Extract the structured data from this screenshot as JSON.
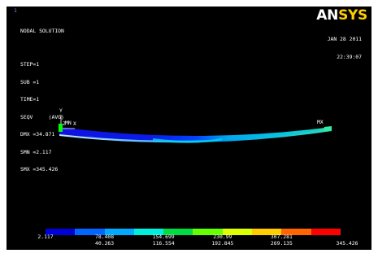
{
  "window_number": "1",
  "info": {
    "title": "NODAL SOLUTION",
    "lines": [
      "STEP=1",
      "SUB =1",
      "TIME=1",
      "SEQV     (AVG)",
      "DMX =34.871",
      "SMN =2.117",
      "SMX =345.426"
    ]
  },
  "logo": {
    "part1": "AN",
    "part2": "SYS"
  },
  "date": {
    "line1": "JAN 28 2011",
    "line2": "22:39:07"
  },
  "axes": {
    "y": "Y",
    "z": "Z",
    "x": "X"
  },
  "markers": {
    "mn": "MN",
    "mx": "MX"
  },
  "legend": {
    "colors": [
      "#0000d8",
      "#0066ff",
      "#00aaff",
      "#00eedd",
      "#00dd44",
      "#66ff00",
      "#ddff00",
      "#ffcc00",
      "#ff6600",
      "#ff0000"
    ],
    "top_labels": [
      "2.117",
      "78.408",
      "154.699",
      "230.99",
      "307.281"
    ],
    "bottom_labels": [
      "40.263",
      "116.554",
      "192.845",
      "269.135",
      "345.426"
    ]
  },
  "theme": {
    "background": "#000000",
    "frame": "#ffffff",
    "logo_white": "#ffffff",
    "logo_yellow": "#ffcc00"
  }
}
